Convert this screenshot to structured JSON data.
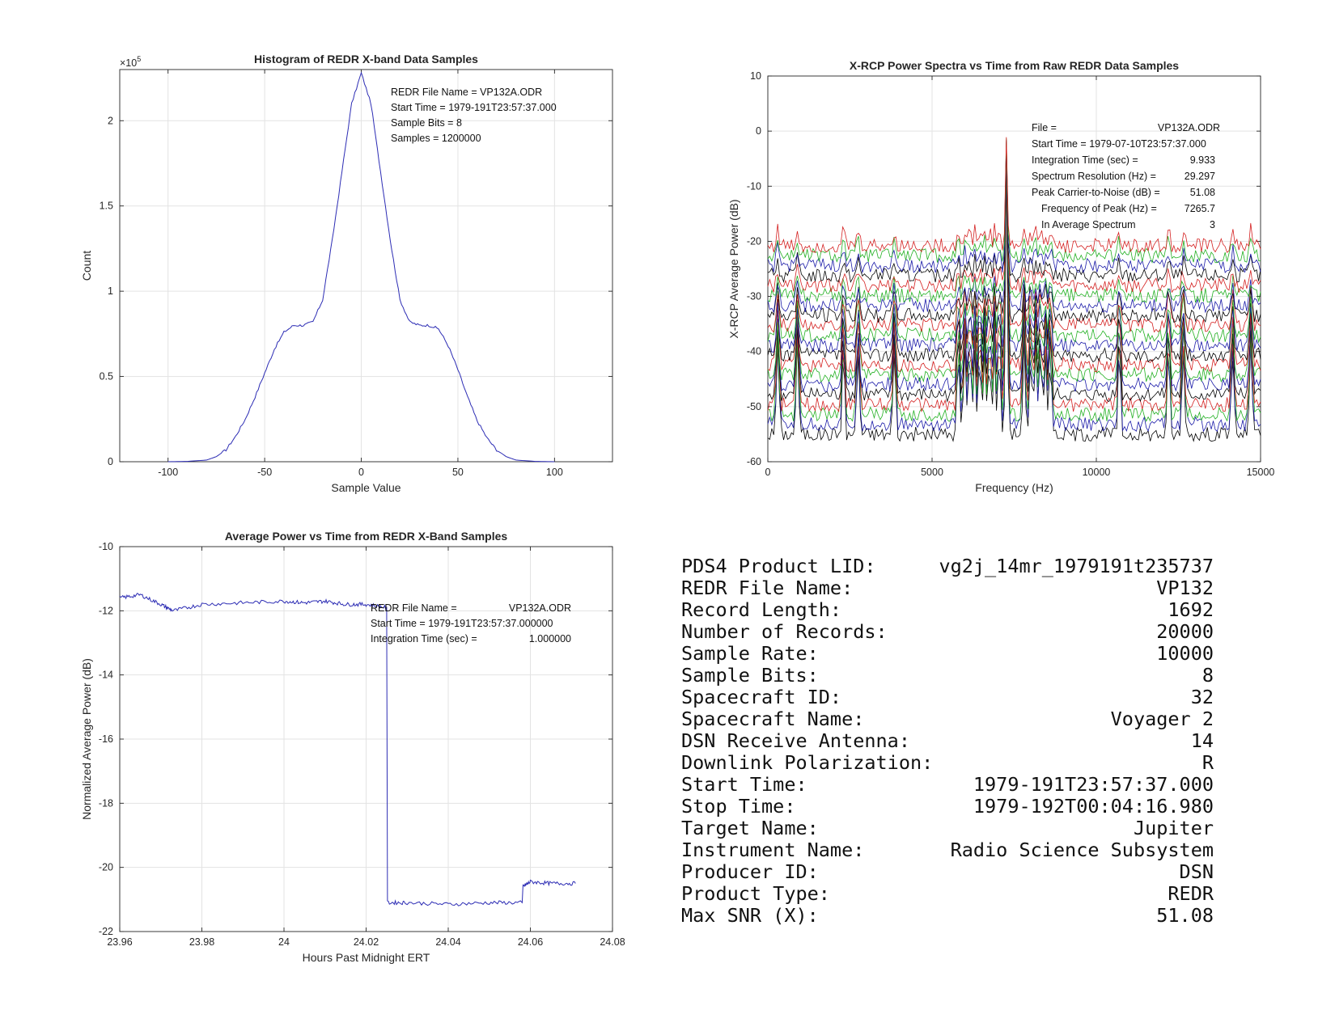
{
  "chart_data": [
    {
      "type": "line",
      "title": "Histogram of REDR X-band Data Samples",
      "xlabel": "Sample Value",
      "ylabel": "Count",
      "exponent_label": "×10",
      "exponent": "5",
      "xlim": [
        -125,
        130
      ],
      "ylim": [
        0,
        2.3
      ],
      "xticks": [
        -100,
        -50,
        0,
        50,
        100
      ],
      "yticks": [
        0,
        0.5,
        1,
        1.5,
        2
      ],
      "ytick_labels": [
        "0",
        "0.5",
        "1",
        "1.5",
        "2"
      ],
      "grid": true,
      "color": "#2c2cb4",
      "series": [
        {
          "x": [
            -100,
            -90,
            -80,
            -75,
            -70,
            -65,
            -60,
            -55,
            -50,
            -45,
            -40,
            -35,
            -30,
            -25,
            -20,
            -15,
            -10,
            -5,
            0,
            5,
            10,
            15,
            20,
            25,
            30,
            35,
            40,
            45,
            50,
            55,
            60,
            65,
            70,
            75,
            80,
            90,
            100
          ],
          "y": [
            0,
            0.002,
            0.01,
            0.03,
            0.07,
            0.15,
            0.25,
            0.38,
            0.52,
            0.66,
            0.76,
            0.8,
            0.8,
            0.82,
            0.95,
            1.3,
            1.7,
            2.1,
            2.28,
            2.1,
            1.7,
            1.3,
            0.95,
            0.82,
            0.8,
            0.8,
            0.78,
            0.68,
            0.54,
            0.38,
            0.24,
            0.14,
            0.07,
            0.03,
            0.01,
            0.002,
            0
          ]
        }
      ],
      "annotation": [
        "REDR File Name = VP132A.ODR",
        "Start Time = 1979-191T23:57:37.000",
        "Sample Bits = 8",
        "Samples = 1200000"
      ]
    },
    {
      "type": "line",
      "title": "X-RCP Power Spectra vs Time from Raw REDR Data Samples",
      "xlabel": "Frequency (Hz)",
      "ylabel": "X-RCP Average Power (dB)",
      "xlim": [
        0,
        15000
      ],
      "ylim": [
        -60,
        10
      ],
      "xticks": [
        0,
        5000,
        10000,
        15000
      ],
      "yticks": [
        -60,
        -50,
        -40,
        -30,
        -20,
        -10,
        0,
        10
      ],
      "grid": true,
      "series_count": 20,
      "series_colors": [
        "#000000",
        "#1a1aa8",
        "#22b022",
        "#d42020"
      ],
      "series_spacing_db": 1.8,
      "lowest_series_baseline_db": -55,
      "main_peak": {
        "x": 7265.7,
        "y": 2
      },
      "spur_frequencies": [
        300,
        900,
        2300,
        2750,
        3850,
        5800,
        6000,
        6150,
        6300,
        6450,
        6600,
        6750,
        6900,
        7050,
        7800,
        8000,
        8150,
        8300,
        8450,
        8600,
        10700,
        12200,
        12650,
        14150,
        14700
      ],
      "annotation_rows": [
        {
          "label": "File =",
          "value": "VP132A.ODR"
        },
        {
          "label": "Start Time = 1979-07-10T23:57:37.000",
          "value": ""
        },
        {
          "label": "Integration Time (sec) =",
          "value": "9.933"
        },
        {
          "label": "Spectrum Resolution (Hz) =",
          "value": "29.297"
        },
        {
          "label": "Peak Carrier-to-Noise (dB) =",
          "value": "51.08"
        },
        {
          "label": "Frequency of Peak (Hz) =",
          "value": "7265.7"
        },
        {
          "label": "In Average Spectrum",
          "value": "3"
        }
      ]
    },
    {
      "type": "line",
      "title": "Average Power vs Time from REDR X-Band Samples",
      "xlabel": "Hours Past Midnight ERT",
      "ylabel": "Normalized Average Power (dB)",
      "xlim": [
        23.96,
        24.08
      ],
      "ylim": [
        -22,
        -10
      ],
      "xticks": [
        23.96,
        23.98,
        24,
        24.02,
        24.04,
        24.06,
        24.08
      ],
      "yticks": [
        -22,
        -20,
        -18,
        -16,
        -14,
        -12,
        -10
      ],
      "grid": true,
      "color": "#2c2cb4",
      "series": [
        {
          "x": [
            23.96,
            23.965,
            23.97,
            23.973,
            23.98,
            23.99,
            24.0,
            24.005,
            24.01,
            24.015,
            24.02,
            24.025,
            24.0252,
            24.03,
            24.04,
            24.05,
            24.058,
            24.0582,
            24.06,
            24.065,
            24.071
          ],
          "y": [
            -11.6,
            -11.5,
            -11.8,
            -12.0,
            -11.8,
            -11.75,
            -11.7,
            -11.75,
            -11.7,
            -11.8,
            -11.8,
            -11.9,
            -21.1,
            -21.1,
            -21.15,
            -21.1,
            -21.1,
            -20.6,
            -20.45,
            -20.5,
            -20.5
          ]
        }
      ],
      "annotation_rows": [
        {
          "label": "REDR File Name =",
          "value": "VP132A.ODR"
        },
        {
          "label": "Start Time = 1979-191T23:57:37.000000",
          "value": ""
        },
        {
          "label": "Integration Time (sec) =",
          "value": "1.000000"
        }
      ]
    }
  ],
  "info_table": [
    {
      "label": "PDS4 Product LID:",
      "value": "vg2j_14mr_1979191t235737"
    },
    {
      "label": "REDR File Name:",
      "value": "VP132"
    },
    {
      "label": "Record Length:",
      "value": "1692"
    },
    {
      "label": "Number of Records:",
      "value": "20000"
    },
    {
      "label": "Sample Rate:",
      "value": "10000"
    },
    {
      "label": "Sample Bits:",
      "value": "8"
    },
    {
      "label": "Spacecraft ID:",
      "value": "32"
    },
    {
      "label": "Spacecraft Name:",
      "value": "Voyager 2"
    },
    {
      "label": "DSN Receive Antenna:",
      "value": "14"
    },
    {
      "label": "Downlink Polarization:",
      "value": "R"
    },
    {
      "label": "Start Time:",
      "value": "1979-191T23:57:37.000"
    },
    {
      "label": "Stop Time:",
      "value": "1979-192T00:04:16.980"
    },
    {
      "label": "Target Name:",
      "value": "Jupiter"
    },
    {
      "label": "Instrument Name:",
      "value": "Radio Science Subsystem"
    },
    {
      "label": "Producer ID:",
      "value": "DSN"
    },
    {
      "label": "Product Type:",
      "value": "REDR"
    },
    {
      "label": "Max SNR (X):",
      "value": "51.08"
    }
  ]
}
